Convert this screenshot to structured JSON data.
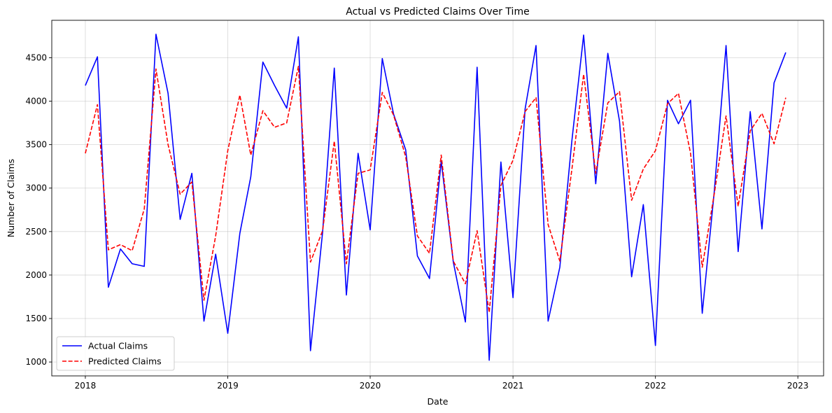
{
  "chart_data": {
    "type": "line",
    "title": "Actual vs Predicted Claims Over Time",
    "xlabel": "Date",
    "ylabel": "Number of Claims",
    "x_ticks": [
      "2018",
      "2019",
      "2020",
      "2021",
      "2022",
      "2023"
    ],
    "y_ticks": [
      1000,
      1500,
      2000,
      2500,
      3000,
      3500,
      4000,
      4500
    ],
    "xlim": [
      "2017-10-07",
      "2023-03-08"
    ],
    "ylim": [
      840,
      4930
    ],
    "grid": true,
    "legend_position": "lower-left",
    "x": [
      "2018-01",
      "2018-02",
      "2018-03",
      "2018-04",
      "2018-05",
      "2018-06",
      "2018-07",
      "2018-08",
      "2018-09",
      "2018-10",
      "2018-11",
      "2018-12",
      "2019-01",
      "2019-02",
      "2019-03",
      "2019-04",
      "2019-05",
      "2019-06",
      "2019-07",
      "2019-08",
      "2019-09",
      "2019-10",
      "2019-11",
      "2019-12",
      "2020-01",
      "2020-02",
      "2020-03",
      "2020-04",
      "2020-05",
      "2020-06",
      "2020-07",
      "2020-08",
      "2020-09",
      "2020-10",
      "2020-11",
      "2020-12",
      "2021-01",
      "2021-02",
      "2021-03",
      "2021-04",
      "2021-05",
      "2021-06",
      "2021-07",
      "2021-08",
      "2021-09",
      "2021-10",
      "2021-11",
      "2021-12",
      "2022-01",
      "2022-02",
      "2022-03",
      "2022-04",
      "2022-05",
      "2022-06",
      "2022-07",
      "2022-08",
      "2022-09",
      "2022-10",
      "2022-11",
      "2022-12"
    ],
    "series": [
      {
        "name": "Actual Claims",
        "color": "#0000ff",
        "style": "solid",
        "values": [
          4180,
          4510,
          1860,
          2300,
          2130,
          2100,
          4770,
          4090,
          2640,
          3170,
          1470,
          2240,
          1330,
          2480,
          3130,
          4450,
          4180,
          3920,
          4740,
          1130,
          2490,
          4380,
          1770,
          3400,
          2520,
          4490,
          3850,
          3440,
          2220,
          1960,
          3310,
          2150,
          1460,
          4390,
          1020,
          3300,
          1740,
          3910,
          4640,
          1470,
          2090,
          3550,
          4760,
          3050,
          4550,
          3770,
          1980,
          2810,
          1190,
          4010,
          3740,
          4010,
          1560,
          2970,
          4640,
          2270,
          3880,
          2530,
          4210,
          4560
        ]
      },
      {
        "name": "Predicted Claims",
        "color": "#ff0000",
        "style": "dashed",
        "values": [
          3400,
          3960,
          2290,
          2350,
          2280,
          2760,
          4370,
          3500,
          2930,
          3070,
          1710,
          2450,
          3430,
          4070,
          3380,
          3890,
          3700,
          3750,
          4400,
          2150,
          2510,
          3540,
          2130,
          3170,
          3210,
          4100,
          3840,
          3360,
          2450,
          2250,
          3380,
          2160,
          1900,
          2510,
          1570,
          3030,
          3320,
          3880,
          4040,
          2580,
          2160,
          3220,
          4310,
          3170,
          3980,
          4110,
          2860,
          3220,
          3430,
          3970,
          4090,
          3400,
          2090,
          2940,
          3830,
          2790,
          3660,
          3860,
          3510,
          4040
        ]
      }
    ]
  }
}
